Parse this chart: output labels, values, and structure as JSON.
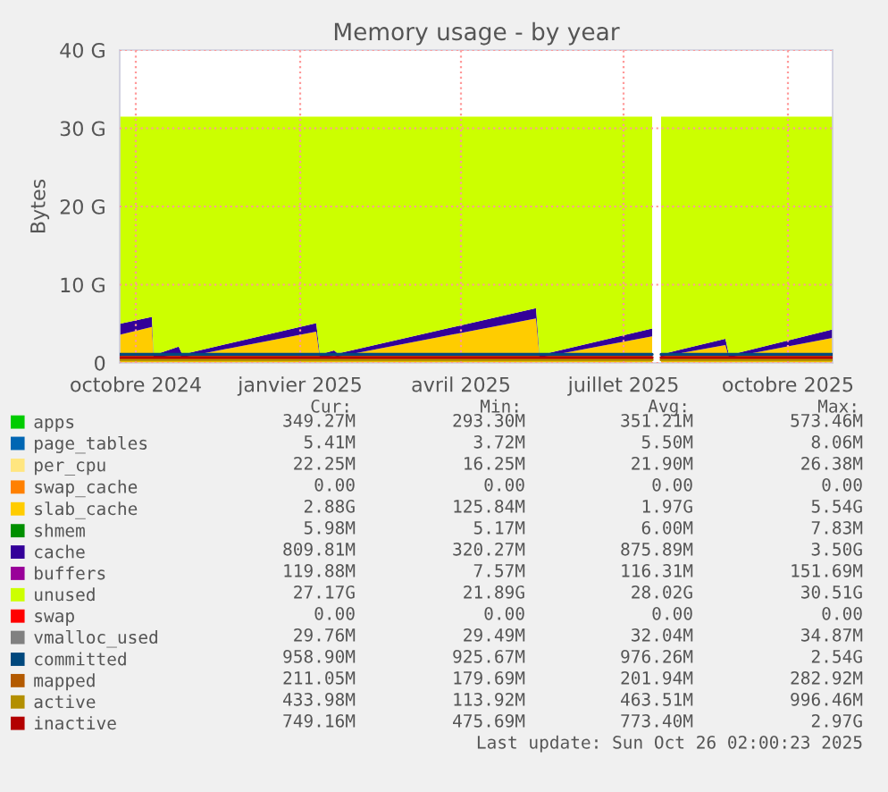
{
  "chart_data": {
    "type": "area",
    "title": "Memory usage - by year",
    "ylabel": "Bytes",
    "stacked": true,
    "grid": true,
    "legend": "bottom",
    "x": [
      "2024-09-22",
      "2024-10-10",
      "2024-10-11",
      "2024-10-25",
      "2024-10-27",
      "2025-01-10",
      "2025-01-12",
      "2025-01-20",
      "2025-01-22",
      "2025-05-13",
      "2025-05-15",
      "2025-07-17",
      "2025-07-19",
      "2025-07-22",
      "2025-08-27",
      "2025-08-29",
      "2025-10-26"
    ],
    "xlim": [
      "2024-09-22",
      "2025-10-26"
    ],
    "xticks": [
      {
        "value": "2024-10-01",
        "label": "octobre 2024"
      },
      {
        "value": "2025-01-01",
        "label": "janvier 2025"
      },
      {
        "value": "2025-04-01",
        "label": "avril 2025"
      },
      {
        "value": "2025-07-01",
        "label": "juillet 2025"
      },
      {
        "value": "2025-10-01",
        "label": "octobre 2025"
      }
    ],
    "ylim": [
      0,
      40
    ],
    "yticks": [
      0,
      {
        "value": 10,
        "label": "10 G"
      },
      {
        "value": 20,
        "label": "20 G"
      },
      {
        "value": 30,
        "label": "30 G"
      },
      {
        "value": 40,
        "label": "40 G"
      }
    ],
    "series": [
      {
        "name": "apps",
        "color": "#00cc00",
        "values": [
          null,
          null,
          null,
          null,
          null,
          null,
          null,
          null,
          null,
          null,
          null,
          null,
          null,
          null,
          null,
          null,
          null
        ]
      },
      {
        "name": "page_tables",
        "color": "#0066b3",
        "values": [
          null,
          null,
          null,
          null,
          null,
          null,
          null,
          null,
          null,
          null,
          null,
          null,
          null,
          null,
          null,
          null,
          null
        ]
      },
      {
        "name": "per_cpu",
        "color": "#ffe680",
        "values": [
          null,
          null,
          null,
          null,
          null,
          null,
          null,
          null,
          null,
          null,
          null,
          null,
          null,
          null,
          null,
          null,
          null
        ]
      },
      {
        "name": "swap_cache",
        "color": "#ff8000",
        "values": [
          null,
          null,
          null,
          null,
          null,
          null,
          null,
          null,
          null,
          null,
          null,
          null,
          null,
          null,
          null,
          null,
          null
        ]
      },
      {
        "name": "slab_cache",
        "color": "#ffcc00",
        "values": [
          3.6,
          4.6,
          0.6,
          1.1,
          0.7,
          4.0,
          0.7,
          0.9,
          0.8,
          5.7,
          0.7,
          3.4,
          null,
          0.8,
          2.3,
          0.7,
          3.2
        ]
      },
      {
        "name": "shmem",
        "color": "#008f00",
        "values": [
          null,
          null,
          null,
          null,
          null,
          null,
          null,
          null,
          null,
          null,
          null,
          null,
          null,
          null,
          null,
          null,
          null
        ]
      },
      {
        "name": "cache",
        "color": "#330099",
        "values": [
          1.4,
          1.3,
          0.4,
          1.0,
          0.4,
          1.1,
          0.4,
          0.7,
          0.4,
          1.3,
          0.3,
          1.0,
          null,
          0.3,
          0.8,
          0.3,
          1.1
        ]
      },
      {
        "name": "buffers",
        "color": "#990099",
        "values": [
          null,
          null,
          null,
          null,
          null,
          null,
          null,
          null,
          null,
          null,
          null,
          null,
          null,
          null,
          null,
          null,
          null
        ]
      },
      {
        "name": "unused",
        "color": "#ccff00",
        "values": [
          26.5,
          25.6,
          30.5,
          29.4,
          30.4,
          26.4,
          30.4,
          29.9,
          30.3,
          24.5,
          30.5,
          27.1,
          null,
          30.4,
          28.4,
          30.5,
          27.2
        ]
      },
      {
        "name": "swap",
        "color": "#ff0000",
        "values": [
          null,
          null,
          null,
          null,
          null,
          null,
          null,
          null,
          null,
          null,
          null,
          null,
          null,
          null,
          null,
          null,
          null
        ]
      },
      {
        "name": "vmalloc_used",
        "color": "#808080",
        "type": "line",
        "values": [
          null,
          null,
          null,
          null,
          null,
          null,
          null,
          null,
          null,
          null,
          null,
          null,
          null,
          null,
          null,
          null,
          null
        ]
      },
      {
        "name": "committed",
        "color": "#00487d",
        "type": "line",
        "x": [
          "2024-09-22",
          "2025-07-17",
          "2025-07-19",
          "2025-07-22",
          "2025-10-26"
        ],
        "values": [
          1.1,
          1.1,
          null,
          1.1,
          1.1
        ]
      },
      {
        "name": "mapped",
        "color": "#b35a00",
        "type": "line",
        "values": [
          null,
          null,
          null,
          null,
          null,
          null,
          null,
          null,
          null,
          null,
          null,
          null,
          null,
          null,
          null,
          null,
          null
        ]
      },
      {
        "name": "active",
        "color": "#b38f00",
        "type": "line",
        "x": [
          "2024-09-22",
          "2025-07-17",
          "2025-07-19",
          "2025-07-22",
          "2025-10-26"
        ],
        "values": [
          0.4,
          0.4,
          null,
          0.4,
          0.4
        ]
      },
      {
        "name": "inactive",
        "color": "#b30000",
        "type": "line",
        "x": [
          "2024-09-22",
          "2025-07-17",
          "2025-07-19",
          "2025-07-22",
          "2025-10-26"
        ],
        "values": [
          0.7,
          0.7,
          null,
          0.7,
          0.7
        ]
      }
    ],
    "annotations": [
      "Cur:",
      "Min:",
      "Avg:",
      "Max:",
      "349.27M",
      "293.30M",
      "351.21M",
      "573.46M",
      "5.41M",
      "3.72M",
      "5.50M",
      "8.06M",
      "22.25M",
      "16.25M",
      "21.90M",
      "26.38M",
      "0.00",
      "0.00",
      "0.00",
      "0.00",
      "2.88G",
      "125.84M",
      "1.97G",
      "5.54G",
      "5.98M",
      "5.17M",
      "6.00M",
      "7.83M",
      "809.81M",
      "320.27M",
      "875.89M",
      "3.50G",
      "119.88M",
      "7.57M",
      "116.31M",
      "151.69M",
      "27.17G",
      "21.89G",
      "28.02G",
      "30.51G",
      "0.00",
      "0.00",
      "0.00",
      "0.00",
      "29.76M",
      "29.49M",
      "32.04M",
      "34.87M",
      "958.90M",
      "925.67M",
      "976.26M",
      "2.54G",
      "211.05M",
      "179.69M",
      "201.94M",
      "282.92M",
      "433.98M",
      "113.92M",
      "463.51M",
      "996.46M",
      "749.16M",
      "475.69M",
      "773.40M",
      "2.97G",
      "Last update: Sun Oct 26 02:00:23 2025"
    ]
  }
}
